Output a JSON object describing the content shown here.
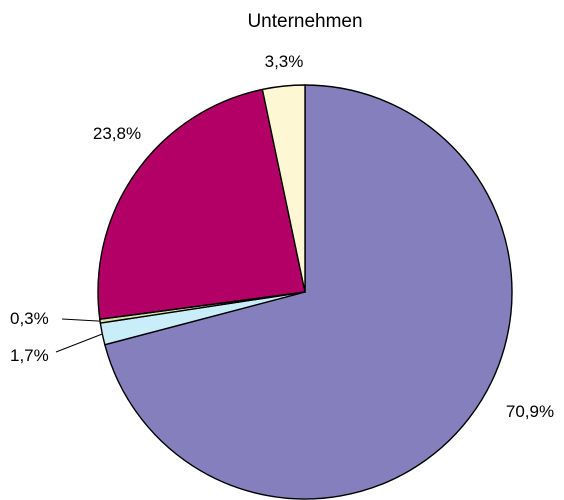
{
  "chart_data": {
    "type": "pie",
    "title": "Unternehmen",
    "slices": [
      {
        "label": "70,9%",
        "value": 70.9,
        "color": "#8580bd"
      },
      {
        "label": "1,7%",
        "value": 1.7,
        "color": "#c9eef9"
      },
      {
        "label": "0,3%",
        "value": 0.3,
        "color": "#d6e4a8"
      },
      {
        "label": "23,8%",
        "value": 23.8,
        "color": "#b20066"
      },
      {
        "label": "3,3%",
        "value": 3.3,
        "color": "#fdf7d3"
      }
    ],
    "start_angle": "12 o'clock",
    "direction": "clockwise",
    "legend": "none"
  }
}
